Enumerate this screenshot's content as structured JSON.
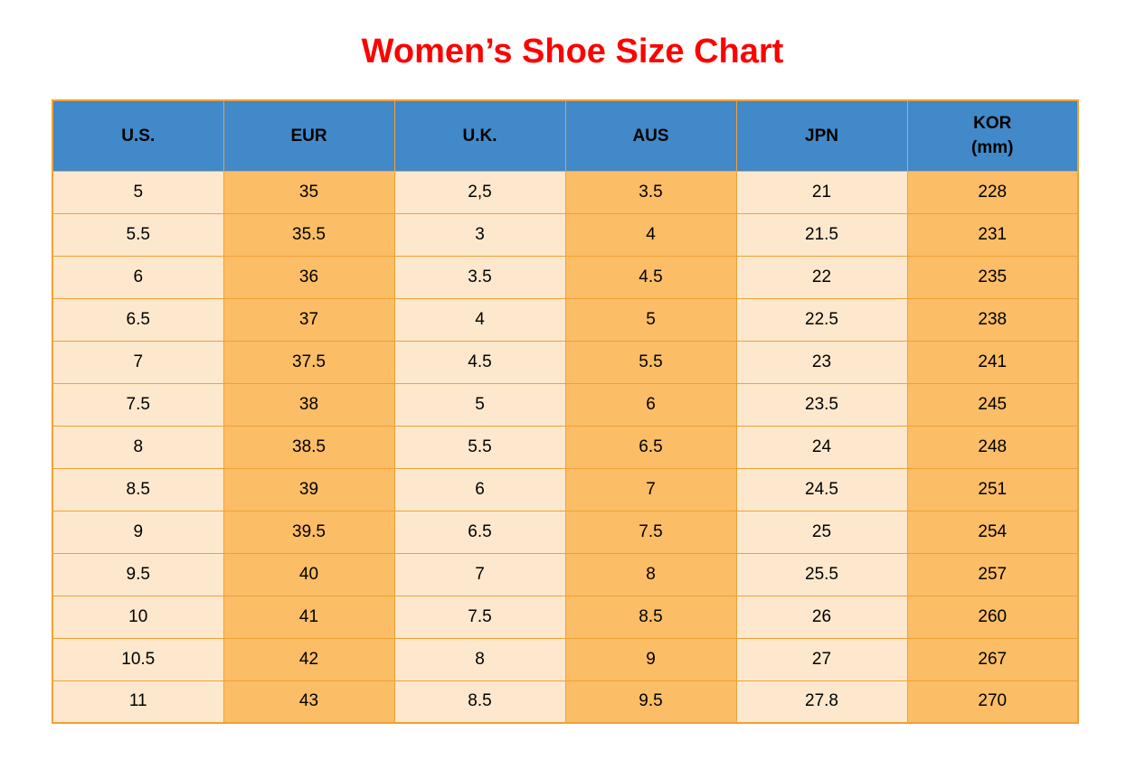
{
  "page": {
    "title": "Women’s Shoe Size Chart"
  },
  "colors": {
    "title_red": "#fe0000",
    "header_blue": "#4189c9",
    "cell_cream": "#fde8cd",
    "cell_orange": "#fbbd66",
    "border_orange": "#efa137",
    "text_black": "#000000"
  },
  "chart_data": {
    "type": "table",
    "title": "Women’s Shoe Size Chart",
    "columns": [
      {
        "id": "us",
        "label": "U.S.",
        "sublabel": ""
      },
      {
        "id": "eur",
        "label": "EUR",
        "sublabel": ""
      },
      {
        "id": "uk",
        "label": "U.K.",
        "sublabel": ""
      },
      {
        "id": "aus",
        "label": "AUS",
        "sublabel": ""
      },
      {
        "id": "jpn",
        "label": "JPN",
        "sublabel": ""
      },
      {
        "id": "kor",
        "label": "KOR",
        "sublabel": "(mm)"
      }
    ],
    "rows": [
      [
        "5",
        "35",
        "2,5",
        "3.5",
        "21",
        "228"
      ],
      [
        "5.5",
        "35.5",
        "3",
        "4",
        "21.5",
        "231"
      ],
      [
        "6",
        "36",
        "3.5",
        "4.5",
        "22",
        "235"
      ],
      [
        "6.5",
        "37",
        "4",
        "5",
        "22.5",
        "238"
      ],
      [
        "7",
        "37.5",
        "4.5",
        "5.5",
        "23",
        "241"
      ],
      [
        "7.5",
        "38",
        "5",
        "6",
        "23.5",
        "245"
      ],
      [
        "8",
        "38.5",
        "5.5",
        "6.5",
        "24",
        "248"
      ],
      [
        "8.5",
        "39",
        "6",
        "7",
        "24.5",
        "251"
      ],
      [
        "9",
        "39.5",
        "6.5",
        "7.5",
        "25",
        "254"
      ],
      [
        "9.5",
        "40",
        "7",
        "8",
        "25.5",
        "257"
      ],
      [
        "10",
        "41",
        "7.5",
        "8.5",
        "26",
        "260"
      ],
      [
        "10.5",
        "42",
        "8",
        "9",
        "27",
        "267"
      ],
      [
        "11",
        "43",
        "8.5",
        "9.5",
        "27.8",
        "270"
      ]
    ]
  }
}
